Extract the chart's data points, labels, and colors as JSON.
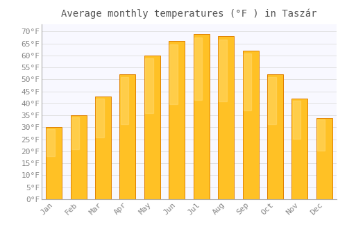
{
  "title": "Average monthly temperatures (°F ) in Taszár",
  "months": [
    "Jan",
    "Feb",
    "Mar",
    "Apr",
    "May",
    "Jun",
    "Jul",
    "Aug",
    "Sep",
    "Oct",
    "Nov",
    "Dec"
  ],
  "values": [
    30,
    35,
    43,
    52,
    60,
    66,
    69,
    68,
    62,
    52,
    42,
    34
  ],
  "bar_color_top": "#FFC125",
  "bar_color_bottom": "#FFA020",
  "bar_edge_color": "#E08000",
  "background_color": "#FFFFFF",
  "plot_bg_color": "#F8F8FF",
  "grid_color": "#DDDDDD",
  "ylim": [
    0,
    73
  ],
  "yticks": [
    0,
    5,
    10,
    15,
    20,
    25,
    30,
    35,
    40,
    45,
    50,
    55,
    60,
    65,
    70
  ],
  "title_fontsize": 10,
  "tick_fontsize": 8,
  "tick_label_color": "#888888",
  "title_color": "#555555",
  "axis_color": "#AAAAAA"
}
